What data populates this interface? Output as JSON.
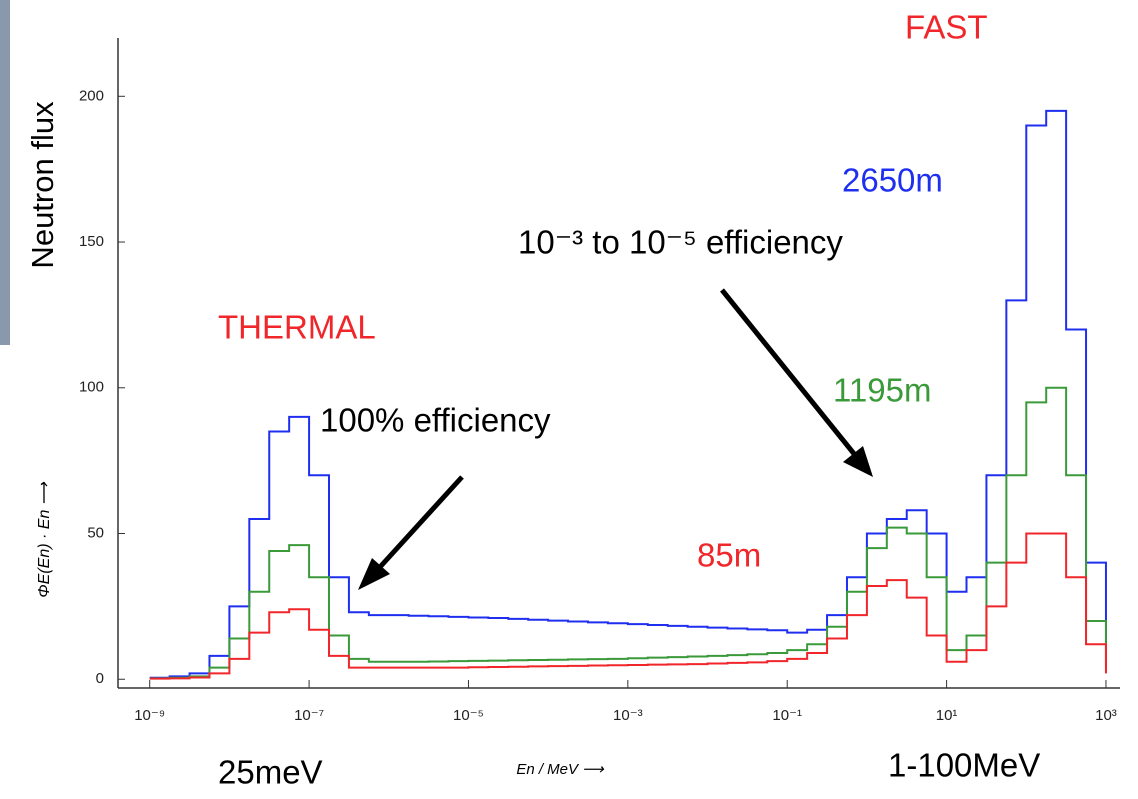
{
  "chart_data": {
    "type": "line",
    "ylabel": "ΦE(En) · En ⟶",
    "xlabel": "En / MeV ⟶",
    "xlog": true,
    "step": true,
    "xlim": [
      4e-10,
      1500
    ],
    "ylim": [
      -3,
      220
    ],
    "xticks": [
      {
        "value": 1e-09,
        "label": "10⁻⁹"
      },
      {
        "value": 1e-07,
        "label": "10⁻⁷"
      },
      {
        "value": 1e-05,
        "label": "10⁻⁵"
      },
      {
        "value": 0.001,
        "label": "10⁻³"
      },
      {
        "value": 0.1,
        "label": "10⁻¹"
      },
      {
        "value": 10,
        "label": "10¹"
      },
      {
        "value": 1000,
        "label": "10³"
      }
    ],
    "yticks": [
      0,
      50,
      100,
      150,
      200
    ],
    "x": [
      1e-09,
      1.778e-09,
      3.162e-09,
      5.623e-09,
      1e-08,
      1.778e-08,
      3.162e-08,
      5.623e-08,
      1e-07,
      1.778e-07,
      3.162e-07,
      5.623e-07,
      1e-06,
      1.778e-06,
      3.162e-06,
      5.623e-06,
      1e-05,
      1.778e-05,
      3.162e-05,
      5.623e-05,
      0.0001,
      0.0001778,
      0.0003162,
      0.0005623,
      0.001,
      0.001778,
      0.003162,
      0.005623,
      0.01,
      0.01778,
      0.03162,
      0.05623,
      0.1,
      0.1778,
      0.3162,
      0.5623,
      1,
      1.778,
      3.162,
      5.623,
      10,
      17.78,
      31.62,
      56.23,
      100,
      177.8,
      316.2,
      562.3,
      1000
    ],
    "series": [
      {
        "name": "2650m",
        "color": "#1f2ff0",
        "values": [
          0.5,
          1,
          2,
          8,
          25,
          55,
          85,
          90,
          70,
          35,
          23,
          22,
          22,
          21.8,
          21.6,
          21.4,
          21.2,
          21,
          20.7,
          20.4,
          20.1,
          19.8,
          19.5,
          19.2,
          18.9,
          18.6,
          18.3,
          18,
          17.7,
          17.4,
          17.1,
          16.8,
          16,
          17,
          22,
          35,
          50,
          55,
          58,
          50,
          30,
          35,
          70,
          130,
          190,
          195,
          120,
          40,
          5
        ]
      },
      {
        "name": "1195m",
        "color": "#3a9a3a",
        "values": [
          0.3,
          0.5,
          1,
          4,
          14,
          30,
          44,
          46,
          35,
          15,
          7,
          6,
          6,
          6,
          6.1,
          6.2,
          6.3,
          6.4,
          6.5,
          6.6,
          6.7,
          6.8,
          6.9,
          7,
          7.2,
          7.4,
          7.6,
          7.8,
          8,
          8.3,
          8.6,
          9,
          10,
          12,
          18,
          30,
          45,
          52,
          50,
          35,
          10,
          15,
          40,
          70,
          95,
          100,
          70,
          20,
          3
        ]
      },
      {
        "name": "85m",
        "color": "#f0262a",
        "values": [
          0.2,
          0.3,
          0.6,
          2,
          7,
          16,
          23,
          24,
          17,
          8,
          4,
          4,
          4,
          4,
          4,
          4,
          4.1,
          4.2,
          4.3,
          4.4,
          4.5,
          4.6,
          4.7,
          4.8,
          4.9,
          5,
          5.1,
          5.2,
          5.4,
          5.6,
          5.8,
          6.2,
          7,
          9,
          14,
          22,
          32,
          34,
          28,
          15,
          6,
          10,
          25,
          40,
          50,
          50,
          35,
          12,
          2
        ]
      }
    ],
    "annotations": [
      {
        "text": "Neutron flux",
        "color": "#000000"
      },
      {
        "text": "THERMAL",
        "color": "#f0262a"
      },
      {
        "text": "FAST",
        "color": "#f0262a"
      },
      {
        "text": "100% efficiency",
        "color": "#000000"
      },
      {
        "text": "10⁻³ to 10⁻⁵ efficiency",
        "color": "#000000"
      },
      {
        "text": "25meV",
        "color": "#000000"
      },
      {
        "text": "1-100MeV",
        "color": "#000000"
      }
    ]
  }
}
